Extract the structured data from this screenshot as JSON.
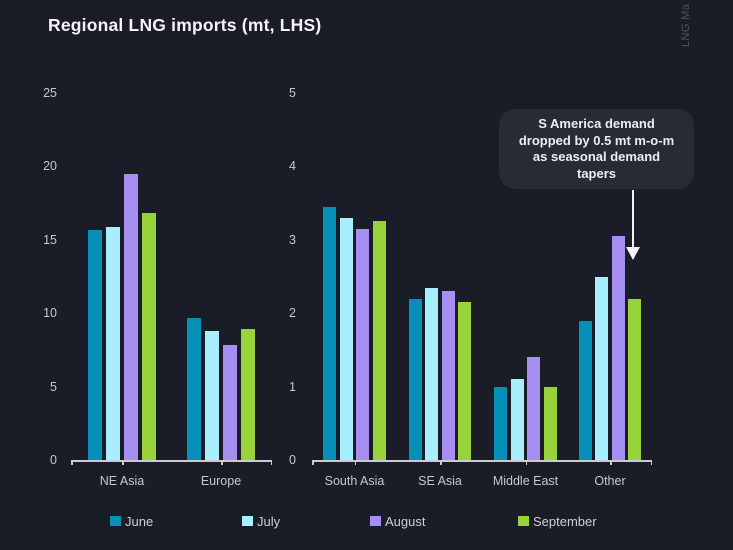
{
  "title": "Regional LNG imports (mt, LHS)",
  "watermark": "LNG Ma",
  "colors": {
    "background": "#1a1d27",
    "june": "#0690b8",
    "july": "#a9eefc",
    "august": "#a78ff1",
    "september": "#99d33c",
    "axis": "#c9ccd2",
    "tick_text": "#c5c8cd",
    "title_text": "#f3f4f6",
    "annotation_bg": "#262b35",
    "annotation_text": "#eceef0",
    "arrow": "#f3f4f6"
  },
  "legend": [
    {
      "label": "June",
      "color": "#0690b8"
    },
    {
      "label": "July",
      "color": "#a9eefc"
    },
    {
      "label": "August",
      "color": "#a78ff1"
    },
    {
      "label": "September",
      "color": "#99d33c"
    }
  ],
  "annotation": {
    "text": "S America demand dropped by 0.5 mt m-o-m as seasonal demand tapers",
    "lines": [
      "S America demand",
      "dropped by 0.5 mt m-o-m",
      "as seasonal demand",
      "tapers"
    ]
  },
  "chart_data": [
    {
      "type": "bar",
      "panel": "left",
      "title": "Regional LNG imports (mt, LHS)",
      "categories": [
        "NE Asia",
        "Europe"
      ],
      "series": [
        {
          "name": "June",
          "values": [
            15.7,
            9.7
          ]
        },
        {
          "name": "July",
          "values": [
            15.9,
            8.8
          ]
        },
        {
          "name": "August",
          "values": [
            19.5,
            7.8
          ]
        },
        {
          "name": "September",
          "values": [
            16.8,
            8.9
          ]
        }
      ],
      "ylim": [
        0,
        25
      ],
      "yticks": [
        0,
        5,
        10,
        15,
        20,
        25
      ],
      "grid": false,
      "legend_position": "bottom"
    },
    {
      "type": "bar",
      "panel": "right",
      "title": "",
      "categories": [
        "South Asia",
        "SE Asia",
        "Middle East",
        "Other"
      ],
      "series": [
        {
          "name": "June",
          "values": [
            3.45,
            2.2,
            1.0,
            1.9
          ]
        },
        {
          "name": "July",
          "values": [
            3.3,
            2.35,
            1.1,
            2.5
          ]
        },
        {
          "name": "August",
          "values": [
            3.15,
            2.3,
            1.4,
            3.05
          ]
        },
        {
          "name": "September",
          "values": [
            3.25,
            2.15,
            1.0,
            2.2
          ]
        }
      ],
      "ylim": [
        0,
        5
      ],
      "yticks": [
        0,
        1,
        2,
        3,
        4,
        5
      ],
      "grid": false,
      "legend_position": "bottom"
    }
  ]
}
